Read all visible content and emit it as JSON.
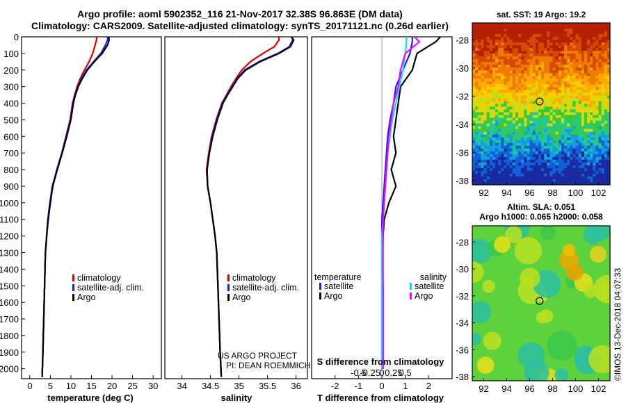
{
  "header": {
    "line1": "Argo profile: aoml 5902352_116 21-Nov-2017 32.38S 96.863E (DM data)",
    "line2": "Climatology: CARS2009. Satellite-adjusted climatology: synTS_20171121.nc (0.26d earlier)"
  },
  "colors": {
    "climatology": "#dd0000",
    "satellite": "#1a1aff",
    "argo": "#000000",
    "sat_t": "#1a1aff",
    "sat_s": "#00e5ff",
    "argo_s": "#ff00ff"
  },
  "chart_data": [
    {
      "type": "line",
      "name": "temperature-profile",
      "xlabel": "temperature (deg C)",
      "ylabel": "depth",
      "xlim": [
        -2,
        32
      ],
      "ylim": [
        2060,
        0
      ],
      "xticks": [
        0,
        5,
        10,
        15,
        20,
        25,
        30
      ],
      "yticks": [
        0,
        100,
        200,
        300,
        400,
        500,
        600,
        700,
        800,
        900,
        1000,
        1100,
        1200,
        1300,
        1400,
        1500,
        1600,
        1700,
        1800,
        1900,
        2000
      ],
      "legend": [
        "climatology",
        "satellite-adj. clim.",
        "Argo"
      ],
      "series": [
        {
          "name": "climatology",
          "color": "#dd0000",
          "x": [
            16.3,
            16.2,
            15.9,
            15.3,
            14.4,
            13.3,
            12.3,
            11.5,
            10.9,
            10.4,
            9.8,
            8.8,
            7.8,
            6.6,
            5.5,
            4.9,
            4.4,
            4.1,
            3.8,
            3.6,
            3.4,
            3.2,
            3.0
          ],
          "y": [
            0,
            20,
            50,
            100,
            150,
            200,
            250,
            300,
            350,
            400,
            500,
            600,
            700,
            800,
            900,
            1000,
            1100,
            1200,
            1300,
            1500,
            1700,
            1900,
            2050
          ]
        },
        {
          "name": "satellite-adj. clim.",
          "color": "#1a1aff",
          "x": [
            19.0,
            18.9,
            18.4,
            17.3,
            15.5,
            13.8,
            12.6,
            11.7,
            11.0,
            10.5,
            9.9,
            8.9,
            7.8,
            6.6,
            5.5,
            4.9,
            4.4,
            4.1,
            3.8,
            3.6,
            3.4,
            3.2,
            3.0
          ],
          "y": [
            0,
            20,
            50,
            100,
            150,
            200,
            250,
            300,
            350,
            400,
            500,
            600,
            700,
            800,
            900,
            1000,
            1100,
            1200,
            1300,
            1500,
            1700,
            1900,
            2050
          ]
        },
        {
          "name": "Argo",
          "color": "#000000",
          "x": [
            19.2,
            19.3,
            18.9,
            17.6,
            15.7,
            14.0,
            12.8,
            11.8,
            11.1,
            10.6,
            10.0,
            9.0,
            7.9,
            6.7,
            5.6,
            5.0,
            4.5,
            4.1,
            3.8,
            3.6,
            3.4,
            3.2,
            3.0
          ],
          "y": [
            0,
            20,
            50,
            100,
            150,
            200,
            250,
            300,
            350,
            400,
            500,
            600,
            700,
            800,
            900,
            1000,
            1100,
            1200,
            1300,
            1500,
            1700,
            1900,
            2050
          ]
        }
      ]
    },
    {
      "type": "line",
      "name": "salinity-profile",
      "xlabel": "salinity",
      "xlim": [
        33.7,
        36.2
      ],
      "ylim": [
        2060,
        0
      ],
      "xticks": [
        34,
        34.5,
        35,
        35.5,
        36
      ],
      "legend": [
        "climatology",
        "satellite-adj. clim.",
        "Argo"
      ],
      "annotation": [
        "US ARGO PROJECT",
        "PI: DEAN ROEMMICH"
      ],
      "series": [
        {
          "name": "climatology",
          "color": "#dd0000",
          "x": [
            35.7,
            35.7,
            35.62,
            35.42,
            35.2,
            35.05,
            34.95,
            34.86,
            34.78,
            34.7,
            34.6,
            34.52,
            34.47,
            34.43,
            34.45,
            34.5,
            34.54,
            34.58,
            34.61,
            34.63,
            34.65,
            34.67,
            34.69
          ],
          "y": [
            0,
            20,
            60,
            100,
            150,
            200,
            250,
            300,
            350,
            400,
            500,
            600,
            700,
            800,
            900,
            1000,
            1100,
            1200,
            1300,
            1500,
            1700,
            1900,
            2050
          ]
        },
        {
          "name": "satellite-adj. clim.",
          "color": "#1a1aff",
          "x": [
            35.93,
            35.94,
            35.88,
            35.68,
            35.35,
            35.1,
            34.97,
            34.88,
            34.79,
            34.71,
            34.61,
            34.53,
            34.48,
            34.44,
            34.45,
            34.5,
            34.54,
            34.58,
            34.61,
            34.63,
            34.65,
            34.67,
            34.69
          ],
          "y": [
            0,
            20,
            60,
            100,
            150,
            200,
            250,
            300,
            350,
            400,
            500,
            600,
            700,
            800,
            900,
            1000,
            1100,
            1200,
            1300,
            1500,
            1700,
            1900,
            2050
          ]
        },
        {
          "name": "Argo",
          "color": "#000000",
          "x": [
            35.92,
            35.96,
            35.9,
            35.7,
            35.37,
            35.12,
            34.98,
            34.89,
            34.8,
            34.72,
            34.62,
            34.54,
            34.48,
            34.44,
            34.45,
            34.5,
            34.54,
            34.58,
            34.61,
            34.63,
            34.65,
            34.67,
            34.69
          ],
          "y": [
            0,
            20,
            60,
            100,
            150,
            200,
            250,
            300,
            350,
            400,
            500,
            600,
            700,
            800,
            900,
            1000,
            1100,
            1200,
            1300,
            1500,
            1700,
            1900,
            2050
          ]
        }
      ]
    },
    {
      "type": "line",
      "name": "difference-profile",
      "xlabel": "T difference from climatology",
      "xlabel_top": "S difference from climatology",
      "xlim": [
        -3.0,
        3.0
      ],
      "ylim": [
        2060,
        0
      ],
      "xticks_t": [
        -2,
        -1,
        0,
        1,
        2
      ],
      "xticks_s": [
        "-0.5",
        "-0.25",
        "0",
        "0.25",
        "0.5"
      ],
      "xticks_s_pos": [
        -1,
        -0.5,
        0,
        0.5,
        1
      ],
      "legend_temperature_title": "temperature",
      "legend_salinity_title": "salinity",
      "legend_temperature": [
        "satellite",
        "Argo"
      ],
      "legend_salinity": [
        "satellite",
        "Argo"
      ],
      "series": [
        {
          "name": "T satellite",
          "color": "#1a1aff",
          "x": [
            1.3,
            1.3,
            1.2,
            0.9,
            0.6,
            0.5,
            0.35,
            0.25,
            0.2,
            0.15,
            0.1,
            0.05,
            0.0,
            0.0,
            0.0,
            0.0,
            0.0,
            0.0
          ],
          "y": [
            0,
            30,
            100,
            200,
            300,
            400,
            500,
            600,
            700,
            800,
            900,
            1000,
            1100,
            1200,
            1400,
            1600,
            1800,
            2000
          ]
        },
        {
          "name": "T Argo",
          "color": "#000000",
          "x": [
            2.5,
            2.3,
            1.5,
            1.3,
            0.8,
            0.7,
            0.6,
            0.5,
            0.6,
            0.4,
            0.6,
            0.3,
            0.1,
            0.05,
            0.03,
            0.02,
            0.01,
            0.0
          ],
          "y": [
            0,
            30,
            100,
            200,
            300,
            400,
            500,
            600,
            700,
            800,
            900,
            1000,
            1100,
            1200,
            1400,
            1600,
            1800,
            2000
          ]
        },
        {
          "name": "S satellite",
          "color": "#00e5ff",
          "x": [
            1.05,
            1.05,
            1.0,
            0.9,
            0.75,
            0.6,
            0.45,
            0.35,
            0.25,
            0.2,
            0.15,
            0.1,
            0.05,
            0.0,
            0.0,
            0.0,
            0.0,
            0.0
          ],
          "y": [
            0,
            30,
            100,
            200,
            300,
            400,
            500,
            600,
            700,
            800,
            900,
            1000,
            1100,
            1200,
            1400,
            1600,
            1800,
            2000
          ]
        },
        {
          "name": "S Argo",
          "color": "#ff00ff",
          "x": [
            1.4,
            1.6,
            1.0,
            0.8,
            0.7,
            0.5,
            0.4,
            0.3,
            0.25,
            0.2,
            0.15,
            0.1,
            0.05,
            0.05,
            0.05,
            0.06,
            0.06,
            0.06
          ],
          "y": [
            0,
            30,
            100,
            200,
            300,
            400,
            500,
            600,
            700,
            800,
            900,
            1000,
            1100,
            1200,
            1400,
            1600,
            1800,
            2000
          ]
        }
      ]
    },
    {
      "type": "heatmap",
      "name": "sst-map",
      "title": "sat. SST: 19 Argo: 19.2",
      "xlim": [
        91,
        103
      ],
      "ylim": [
        -38.3,
        -26.8
      ],
      "xticks": [
        92,
        94,
        96,
        98,
        100,
        102
      ],
      "yticks": [
        -28,
        -30,
        -32,
        -34,
        -36,
        -38
      ],
      "marker": {
        "lon": 96.863,
        "lat": -32.38
      }
    },
    {
      "type": "heatmap",
      "name": "sla-map",
      "title": "Altim. SLA: 0.051",
      "subtitle": "Argo h1000: 0.065 h2000: 0.058",
      "xlim": [
        91,
        103
      ],
      "ylim": [
        -38.3,
        -26.8
      ],
      "xticks": [
        92,
        94,
        96,
        98,
        100,
        102
      ],
      "yticks": [
        -28,
        -30,
        -32,
        -34,
        -36,
        -38
      ],
      "marker": {
        "lon": 96.863,
        "lat": -32.38
      },
      "side_label": "©IMOS 13-Dec-2018 04:07:33"
    }
  ]
}
